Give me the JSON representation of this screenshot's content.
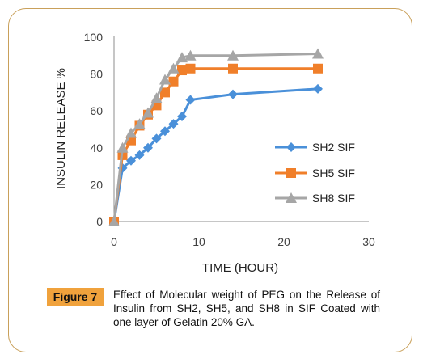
{
  "chart_data": {
    "type": "line",
    "title": "",
    "xlabel": "TIME (HOUR)",
    "ylabel": "INSULIN RELEASE %",
    "xlim": [
      0,
      30
    ],
    "ylim": [
      0,
      100
    ],
    "xticks": [
      "0",
      "10",
      "20",
      "30"
    ],
    "yticks": [
      "0",
      "20",
      "40",
      "60",
      "80",
      "100"
    ],
    "grid": false,
    "legend_position": "right",
    "series": [
      {
        "name": "SH2 SIF",
        "color": "#4a90d9",
        "marker": "diamond",
        "x": [
          0,
          1,
          2,
          3,
          4,
          5,
          6,
          7,
          8,
          9,
          14,
          24
        ],
        "y": [
          0,
          29,
          33,
          36,
          40,
          45,
          49,
          53,
          57,
          66,
          69,
          72
        ]
      },
      {
        "name": "SH5 SIF",
        "color": "#f07f2a",
        "marker": "square",
        "x": [
          0,
          1,
          2,
          3,
          4,
          5,
          6,
          7,
          8,
          9,
          14,
          24
        ],
        "y": [
          0,
          36,
          44,
          52,
          58,
          63,
          70,
          76,
          82,
          83,
          83,
          83
        ]
      },
      {
        "name": "SH8 SIF",
        "color": "#a6a6a6",
        "marker": "triangle",
        "x": [
          0,
          1,
          2,
          3,
          4,
          5,
          6,
          7,
          8,
          9,
          14,
          24
        ],
        "y": [
          0,
          40,
          48,
          53,
          59,
          67,
          77,
          83,
          89,
          90,
          90,
          91
        ]
      }
    ]
  },
  "caption": {
    "label": "Figure 7",
    "text": "Effect of Molecular weight of PEG on the Release of Insulin from SH2, SH5, and SH8 in SIF Coated with one layer of Gelatin 20% GA."
  }
}
